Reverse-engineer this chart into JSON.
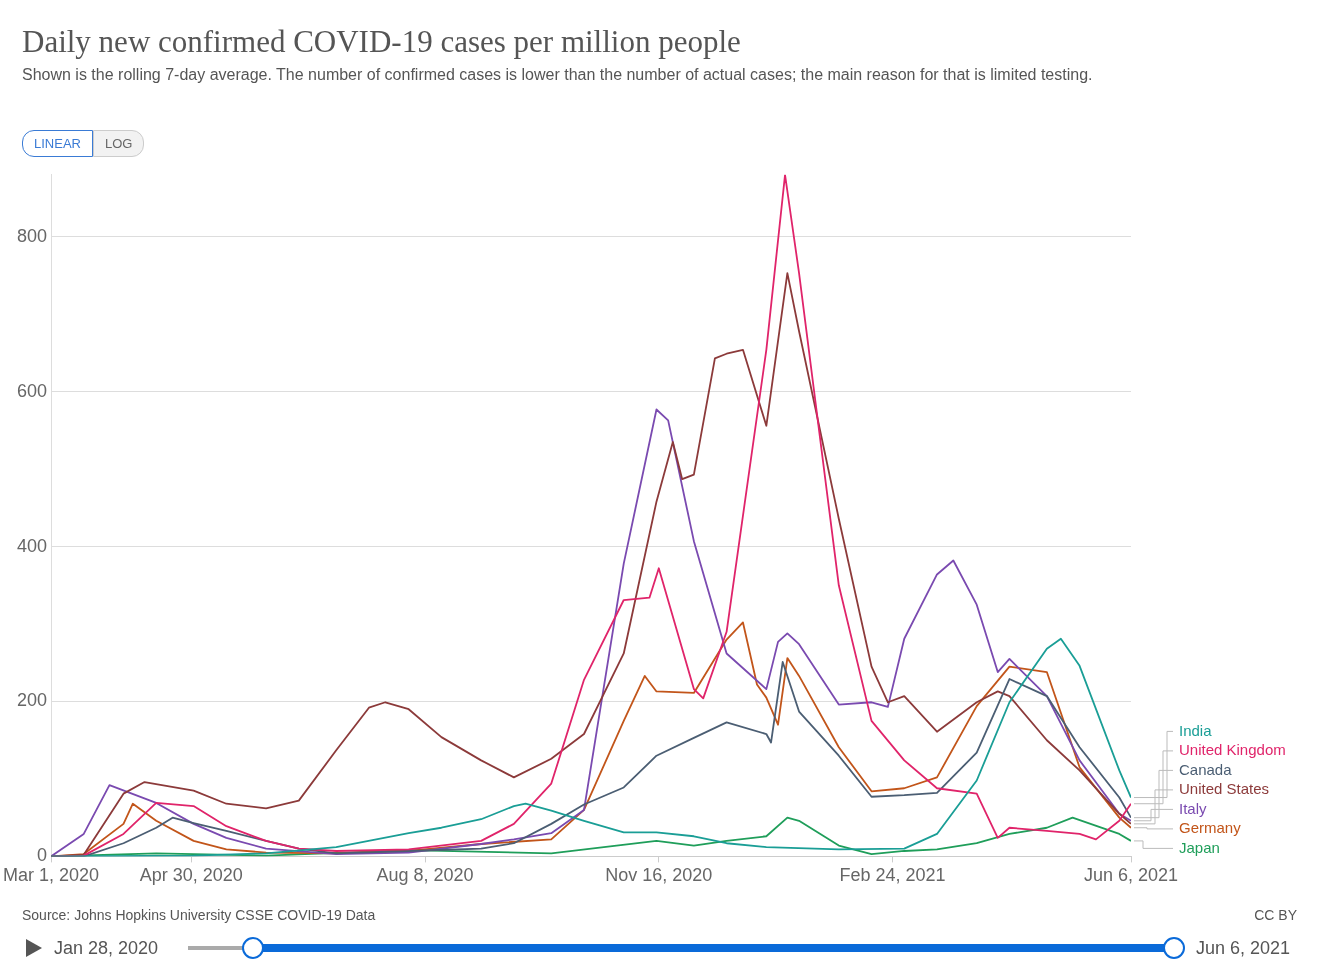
{
  "chart_data": {
    "type": "line",
    "title": "Daily new confirmed COVID-19 cases per million people",
    "subtitle": "Shown is the rolling 7-day average. The number of confirmed cases is lower than the number of actual cases; the main reason for that is limited testing.",
    "annotations": [
      "Source: Johns Hopkins University CSSE COVID-19 Data",
      "CC BY",
      "LINEAR",
      "LOG",
      "Jan 28, 2020",
      "Jun 6, 2021"
    ],
    "xlim": [
      "2020-03-01",
      "2021-06-06"
    ],
    "xticks": [
      {
        "value": "2020-03-01",
        "label": "Mar 1, 2020"
      },
      {
        "value": "2020-04-30",
        "label": "Apr 30, 2020"
      },
      {
        "value": "2020-08-08",
        "label": "Aug 8, 2020"
      },
      {
        "value": "2020-11-16",
        "label": "Nov 16, 2020"
      },
      {
        "value": "2021-02-24",
        "label": "Feb 24, 2021"
      },
      {
        "value": "2021-06-06",
        "label": "Jun 6, 2021"
      }
    ],
    "ylim": [
      0,
      880
    ],
    "yticks": [
      0,
      200,
      400,
      600,
      800
    ],
    "grid": "y",
    "legend": "right",
    "marker": "none",
    "line_style": "solid",
    "series": [
      {
        "name": "India",
        "color": "#1a9e96",
        "x": [
          "2020-03-01",
          "2020-05-01",
          "2020-06-01",
          "2020-07-01",
          "2020-08-01",
          "2020-08-15",
          "2020-09-01",
          "2020-09-15",
          "2020-09-20",
          "2020-10-01",
          "2020-10-15",
          "2020-11-01",
          "2020-11-15",
          "2020-12-01",
          "2020-12-15",
          "2021-01-01",
          "2021-02-01",
          "2021-03-01",
          "2021-03-15",
          "2021-04-01",
          "2021-04-15",
          "2021-05-01",
          "2021-05-07",
          "2021-05-15",
          "2021-06-01",
          "2021-06-06"
        ],
        "values": [
          0,
          1,
          4,
          12,
          30,
          37,
          48,
          65,
          68,
          59,
          46,
          31,
          31,
          26,
          17,
          12,
          9,
          10,
          29,
          98,
          199,
          268,
          281,
          246,
          111,
          76
        ]
      },
      {
        "name": "United Kingdom",
        "color": "#e0246a",
        "x": [
          "2020-03-01",
          "2020-03-15",
          "2020-04-01",
          "2020-04-15",
          "2020-05-01",
          "2020-05-15",
          "2020-06-01",
          "2020-06-15",
          "2020-07-01",
          "2020-08-01",
          "2020-09-01",
          "2020-09-15",
          "2020-10-01",
          "2020-10-15",
          "2020-11-01",
          "2020-11-12",
          "2020-11-16",
          "2020-12-01",
          "2020-12-05",
          "2020-12-15",
          "2021-01-01",
          "2021-01-09",
          "2021-01-15",
          "2021-02-01",
          "2021-02-15",
          "2021-03-01",
          "2021-03-15",
          "2021-04-01",
          "2021-04-10",
          "2021-04-15",
          "2021-05-01",
          "2021-05-15",
          "2021-05-22",
          "2021-06-01",
          "2021-06-06"
        ],
        "values": [
          0,
          1,
          29,
          69,
          65,
          39,
          20,
          10,
          7,
          9,
          20,
          42,
          94,
          228,
          331,
          334,
          372,
          216,
          204,
          290,
          654,
          880,
          753,
          350,
          175,
          124,
          88,
          81,
          24,
          37,
          33,
          29,
          22,
          46,
          68
        ]
      },
      {
        "name": "Canada",
        "color": "#4b5e73",
        "x": [
          "2020-03-01",
          "2020-03-15",
          "2020-04-01",
          "2020-04-15",
          "2020-04-22",
          "2020-05-01",
          "2020-05-15",
          "2020-06-01",
          "2020-06-15",
          "2020-07-01",
          "2020-08-01",
          "2020-09-01",
          "2020-09-15",
          "2020-10-01",
          "2020-10-15",
          "2020-11-01",
          "2020-11-15",
          "2020-12-01",
          "2020-12-15",
          "2021-01-01",
          "2021-01-03",
          "2021-01-08",
          "2021-01-15",
          "2021-02-01",
          "2021-02-15",
          "2021-03-01",
          "2021-03-15",
          "2021-04-01",
          "2021-04-15",
          "2021-05-01",
          "2021-05-15",
          "2021-06-01",
          "2021-06-06"
        ],
        "values": [
          0,
          0,
          17,
          37,
          50,
          43,
          33,
          20,
          10,
          4,
          7,
          10,
          17,
          42,
          67,
          89,
          130,
          153,
          173,
          158,
          147,
          251,
          187,
          130,
          77,
          79,
          82,
          134,
          229,
          207,
          141,
          76,
          50
        ]
      },
      {
        "name": "United States",
        "color": "#8c3a3a",
        "x": [
          "2020-03-01",
          "2020-03-15",
          "2020-04-01",
          "2020-04-10",
          "2020-05-01",
          "2020-05-15",
          "2020-06-01",
          "2020-06-15",
          "2020-07-01",
          "2020-07-15",
          "2020-07-22",
          "2020-08-01",
          "2020-08-15",
          "2020-09-01",
          "2020-09-15",
          "2020-10-01",
          "2020-10-15",
          "2020-11-01",
          "2020-11-15",
          "2020-11-22",
          "2020-11-26",
          "2020-12-01",
          "2020-12-10",
          "2020-12-15",
          "2020-12-22",
          "2021-01-01",
          "2021-01-10",
          "2021-01-15",
          "2021-02-01",
          "2021-02-15",
          "2021-02-22",
          "2021-03-01",
          "2021-03-15",
          "2021-04-01",
          "2021-04-10",
          "2021-04-15",
          "2021-05-01",
          "2021-05-15",
          "2021-06-01",
          "2021-06-06"
        ],
        "values": [
          0,
          2,
          81,
          96,
          85,
          68,
          62,
          72,
          137,
          192,
          199,
          190,
          154,
          124,
          102,
          126,
          158,
          262,
          458,
          535,
          487,
          493,
          643,
          649,
          654,
          556,
          753,
          678,
          436,
          245,
          199,
          207,
          161,
          199,
          213,
          207,
          150,
          111,
          55,
          42
        ]
      },
      {
        "name": "Italy",
        "color": "#7a4ab0",
        "x": [
          "2020-03-01",
          "2020-03-15",
          "2020-03-26",
          "2020-04-15",
          "2020-05-01",
          "2020-05-15",
          "2020-06-01",
          "2020-07-01",
          "2020-08-01",
          "2020-09-01",
          "2020-09-15",
          "2020-10-01",
          "2020-10-15",
          "2020-11-01",
          "2020-11-15",
          "2020-11-20",
          "2020-12-01",
          "2020-12-15",
          "2021-01-01",
          "2021-01-06",
          "2021-01-10",
          "2021-01-15",
          "2021-02-01",
          "2021-02-15",
          "2021-02-22",
          "2021-03-01",
          "2021-03-15",
          "2021-03-22",
          "2021-04-01",
          "2021-04-10",
          "2021-04-15",
          "2021-05-01",
          "2021-05-15",
          "2021-06-01",
          "2021-06-06"
        ],
        "values": [
          0,
          29,
          92,
          69,
          42,
          24,
          10,
          3,
          5,
          16,
          22,
          30,
          60,
          378,
          577,
          563,
          407,
          262,
          216,
          277,
          288,
          274,
          196,
          199,
          193,
          281,
          364,
          382,
          325,
          238,
          255,
          207,
          124,
          55,
          46
        ]
      },
      {
        "name": "Germany",
        "color": "#c2551a",
        "x": [
          "2020-03-01",
          "2020-03-15",
          "2020-04-01",
          "2020-04-05",
          "2020-04-15",
          "2020-05-01",
          "2020-05-15",
          "2020-06-01",
          "2020-07-01",
          "2020-08-01",
          "2020-09-01",
          "2020-10-01",
          "2020-10-15",
          "2020-11-01",
          "2020-11-10",
          "2020-11-15",
          "2020-12-01",
          "2020-12-15",
          "2020-12-22",
          "2020-12-28",
          "2021-01-01",
          "2021-01-06",
          "2021-01-10",
          "2021-01-15",
          "2021-02-01",
          "2021-02-15",
          "2021-03-01",
          "2021-03-15",
          "2021-04-01",
          "2021-04-15",
          "2021-05-01",
          "2021-05-15",
          "2021-06-01",
          "2021-06-06"
        ],
        "values": [
          0,
          3,
          42,
          68,
          46,
          20,
          9,
          5,
          4,
          7,
          16,
          22,
          60,
          175,
          233,
          213,
          211,
          280,
          302,
          222,
          205,
          170,
          256,
          233,
          141,
          84,
          88,
          102,
          194,
          245,
          238,
          115,
          50,
          37
        ]
      },
      {
        "name": "Japan",
        "color": "#1f9e5a",
        "x": [
          "2020-03-01",
          "2020-04-15",
          "2020-06-01",
          "2020-08-01",
          "2020-10-01",
          "2020-11-15",
          "2020-12-01",
          "2020-12-15",
          "2021-01-01",
          "2021-01-10",
          "2021-01-15",
          "2021-02-01",
          "2021-02-15",
          "2021-03-01",
          "2021-03-15",
          "2021-04-01",
          "2021-04-15",
          "2021-05-01",
          "2021-05-12",
          "2021-06-01",
          "2021-06-06"
        ],
        "values": [
          0,
          4,
          1,
          8,
          4,
          20,
          14,
          20,
          26,
          50,
          46,
          14,
          3,
          7,
          9,
          17,
          29,
          37,
          50,
          29,
          20
        ]
      }
    ]
  }
}
